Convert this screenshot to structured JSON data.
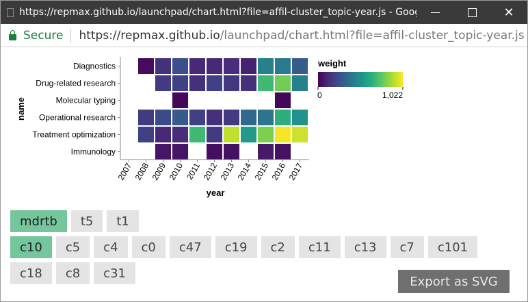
{
  "window": {
    "title": "https://repmax.github.io/launchpad/chart.html?file=affil-cluster_topic-year.js - Goog...",
    "minimize_icon": "minimize-icon",
    "maximize_icon": "maximize-icon",
    "close_symbol": "✕"
  },
  "addressbar": {
    "secure_label": "Secure",
    "url_host": "https://repmax.github.io",
    "url_path": "/launchpad/chart.html?file=affil-cluster_topic-year.js"
  },
  "chart_data": {
    "type": "heatmap",
    "xlabel": "year",
    "ylabel": "name",
    "x": [
      "2007",
      "2008",
      "2009",
      "2010",
      "2011",
      "2012",
      "2013",
      "2014",
      "2015",
      "2016",
      "2017"
    ],
    "y": [
      "Diagnostics",
      "Drug-related research",
      "Molecular typing",
      "Operational research",
      "Treatment optimization",
      "Immunology"
    ],
    "values": [
      [
        null,
        30,
        150,
        250,
        120,
        120,
        130,
        100,
        450,
        420,
        300
      ],
      [
        null,
        null,
        180,
        200,
        140,
        200,
        170,
        150,
        700,
        800,
        450
      ],
      [
        null,
        null,
        null,
        20,
        null,
        null,
        null,
        null,
        null,
        20,
        null
      ],
      [
        null,
        180,
        230,
        300,
        200,
        140,
        180,
        350,
        400,
        650,
        520
      ],
      [
        null,
        200,
        120,
        130,
        700,
        180,
        930,
        550,
        820,
        1010,
        950
      ],
      [
        null,
        null,
        60,
        60,
        null,
        40,
        50,
        null,
        70,
        50,
        null
      ]
    ],
    "legend": {
      "title": "weight",
      "min_label": "0",
      "max_label": "1,022",
      "min": 0,
      "max": 1022,
      "placement": "right"
    },
    "colors": [
      "#440154",
      "#472c7a",
      "#3b518b",
      "#2c718e",
      "#21908d",
      "#27ad81",
      "#5cc863",
      "#aadc32",
      "#fde725"
    ]
  },
  "filters": {
    "row1": [
      {
        "label": "mdrtb",
        "active": true
      },
      {
        "label": "t5",
        "active": false
      },
      {
        "label": "t1",
        "active": false
      }
    ],
    "row2": [
      {
        "label": "c10",
        "active": true
      },
      {
        "label": "c5",
        "active": false
      },
      {
        "label": "c4",
        "active": false
      },
      {
        "label": "c0",
        "active": false
      },
      {
        "label": "c47",
        "active": false
      },
      {
        "label": "c19",
        "active": false
      },
      {
        "label": "c2",
        "active": false
      },
      {
        "label": "c11",
        "active": false
      },
      {
        "label": "c13",
        "active": false
      },
      {
        "label": "c7",
        "active": false
      },
      {
        "label": "c101",
        "active": false
      }
    ],
    "row3": [
      {
        "label": "c18",
        "active": false
      },
      {
        "label": "c8",
        "active": false
      },
      {
        "label": "c31",
        "active": false
      }
    ]
  },
  "export": {
    "label": "Export as SVG"
  }
}
